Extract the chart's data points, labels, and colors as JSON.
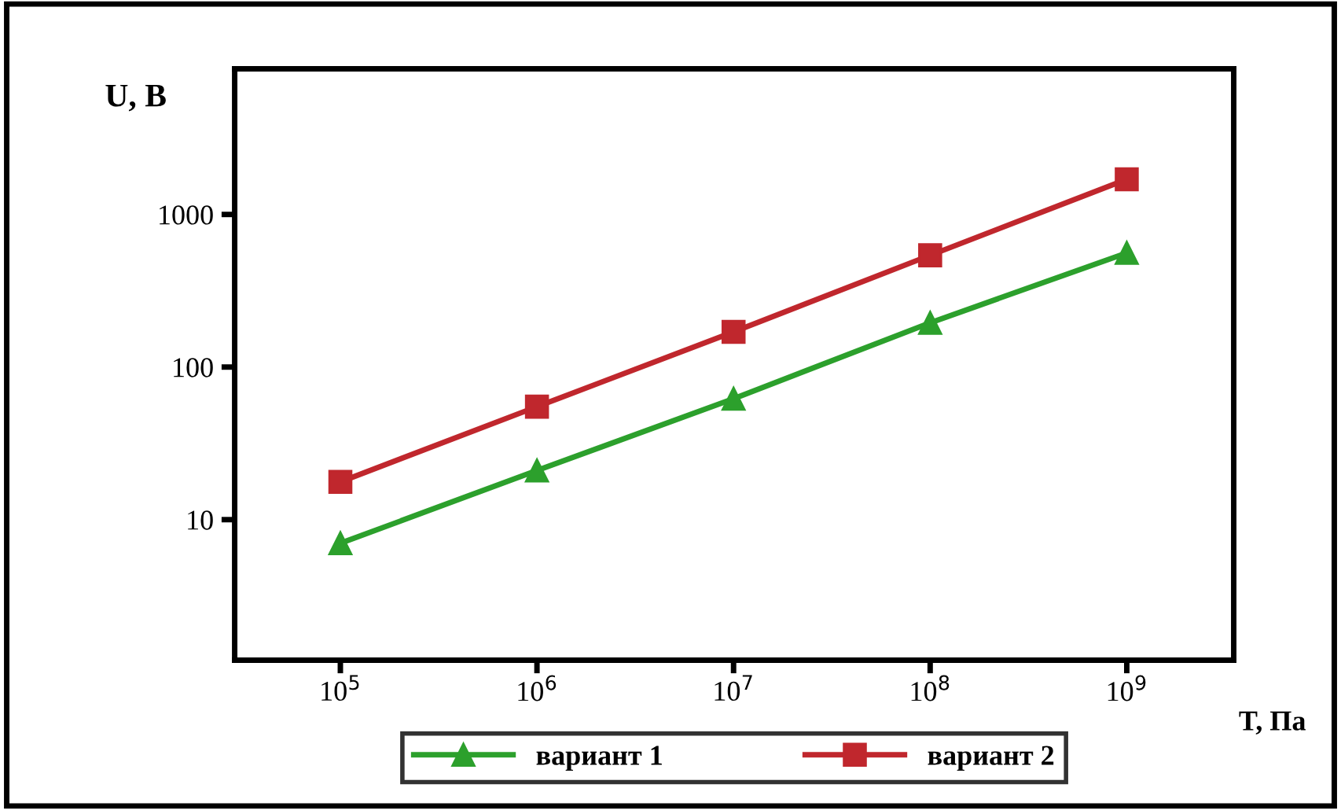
{
  "chart_data": {
    "type": "line",
    "xlabel": "T, Па",
    "ylabel": "U, В",
    "log": "xy",
    "x": [
      100000,
      1000000,
      10000000,
      100000000,
      1000000000
    ],
    "series": [
      {
        "name": "вариант 1",
        "color": "#2ca02c",
        "marker": "triangle",
        "values": [
          7,
          21,
          62,
          195,
          560
        ]
      },
      {
        "name": "вариант 2",
        "color": "#c0272d",
        "marker": "square",
        "values": [
          17.7,
          55,
          170,
          540,
          1700
        ]
      }
    ],
    "xlim": [
      29000,
      3500000000
    ],
    "ylim": [
      1.2,
      9000
    ],
    "xticks": [
      {
        "value": 100000,
        "label": "10$^{5}$"
      },
      {
        "value": 1000000,
        "label": "10$^{6}$"
      },
      {
        "value": 10000000,
        "label": "10$^{7}$"
      },
      {
        "value": 100000000,
        "label": "10$^{8}$"
      },
      {
        "value": 1000000000,
        "label": "10$^{9}$"
      }
    ],
    "yticks": [
      10,
      100,
      1000
    ],
    "grid": false,
    "legend": "bottom",
    "line_style": "solid"
  }
}
